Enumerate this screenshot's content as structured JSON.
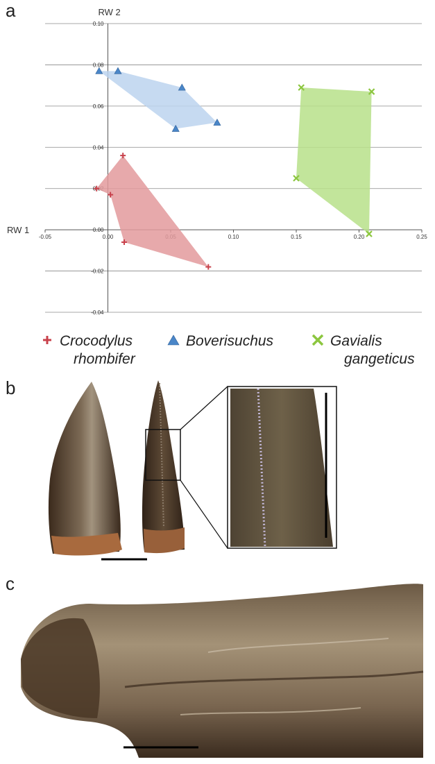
{
  "panels": {
    "a": "a",
    "b": "b",
    "c": "c"
  },
  "chart_data": {
    "type": "scatter",
    "xlabel": "RW 1",
    "ylabel": "RW 2",
    "xlim": [
      -0.05,
      0.25
    ],
    "ylim": [
      -0.04,
      0.1
    ],
    "xticks": [
      -0.05,
      0.0,
      0.05,
      0.1,
      0.15,
      0.2,
      0.25
    ],
    "xtick_labels": [
      "-0.05",
      "0.00",
      "0.05",
      "0.10",
      "0.15",
      "0.20",
      "0.25"
    ],
    "yticks": [
      -0.04,
      -0.02,
      0.0,
      0.02,
      0.04,
      0.06,
      0.08,
      0.1
    ],
    "ytick_labels": [
      "-0.04",
      "-0.02",
      "0.00",
      "0.02",
      "0.04",
      "0.06",
      "0.08",
      "0.10"
    ],
    "grid": "horizontal",
    "legend_position": "bottom",
    "series": [
      {
        "name": "Crocodylus rhombifer",
        "name_lines": [
          "Crocodylus",
          "rhombifer"
        ],
        "marker": "plus",
        "color": "#c8414b",
        "fill": "#e39a9c",
        "points": [
          [
            -0.009,
            0.02
          ],
          [
            0.002,
            0.017
          ],
          [
            0.012,
            0.036
          ],
          [
            0.013,
            -0.006
          ],
          [
            0.08,
            -0.018
          ]
        ],
        "hull": [
          0,
          2,
          4,
          3,
          1
        ]
      },
      {
        "name": "Boverisuchus",
        "name_lines": [
          "Boverisuchus"
        ],
        "marker": "triangle",
        "color": "#4a86c8",
        "fill": "#bcd3ef",
        "points": [
          [
            -0.007,
            0.077
          ],
          [
            0.008,
            0.077
          ],
          [
            0.059,
            0.069
          ],
          [
            0.087,
            0.052
          ],
          [
            0.054,
            0.049
          ]
        ],
        "hull": [
          0,
          1,
          2,
          3,
          4
        ]
      },
      {
        "name": "Gavialis gangeticus",
        "name_lines": [
          "Gavialis",
          "gangeticus"
        ],
        "marker": "x",
        "color": "#8cc63f",
        "fill": "#b7e08a",
        "points": [
          [
            0.154,
            0.069
          ],
          [
            0.21,
            0.067
          ],
          [
            0.15,
            0.025
          ],
          [
            0.208,
            -0.002
          ]
        ],
        "hull": [
          0,
          1,
          3,
          2
        ]
      }
    ]
  },
  "photos": {
    "tooth_front": "tooth-front-view",
    "tooth_side": "tooth-side-view",
    "serration_inset": "serration-inset",
    "jaw_fragment": "jaw-fragment"
  }
}
